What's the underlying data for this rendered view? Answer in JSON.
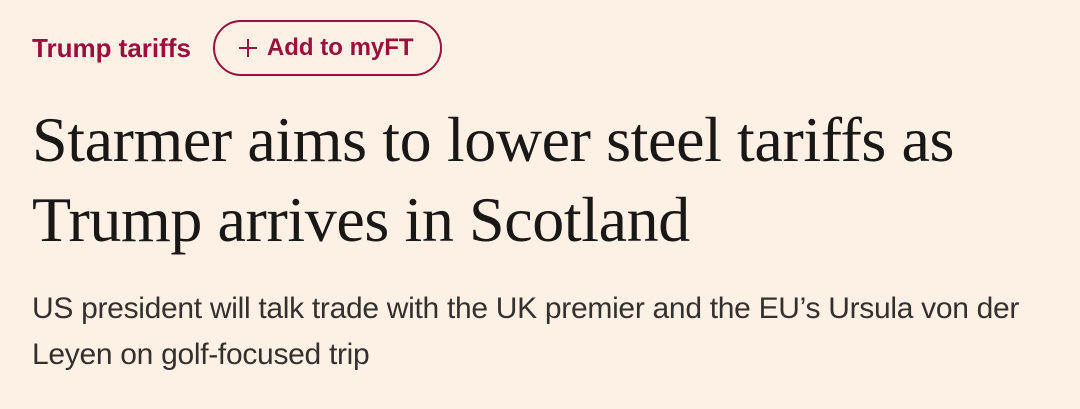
{
  "article": {
    "topic": "Trump tariffs",
    "follow_button": {
      "icon": "plus-icon",
      "label": "Add to myFT"
    },
    "headline": "Starmer aims to lower steel tariffs as Trump arrives in Scotland",
    "standfirst": "US president will talk trade with the UK premier and the EU’s Ursula von der Leyen on golf-focused trip"
  },
  "colors": {
    "background": "#fdf1e5",
    "accent": "#990f3d",
    "headline_text": "#1a1817",
    "body_text": "#33302e"
  }
}
